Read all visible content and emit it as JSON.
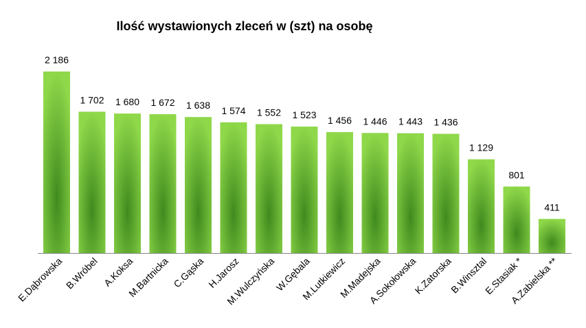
{
  "chart_data": {
    "type": "bar",
    "title": "Ilość  wystawionych zleceń w (szt) na osobę",
    "categories": [
      "E.Dąbrowska",
      "B.Wróbel",
      "A.Koksa",
      "M.Bartnicka",
      "C.Gąska",
      "H.Jarosz",
      "M.Wulczyńska",
      "W.Gębala",
      "M.Lutkiewicz",
      "M.Madejska",
      "A.Sokołowska",
      "K.Zatorska",
      "B.Winsztal",
      "E.Stasiak *",
      "A.Zabielska **"
    ],
    "values": [
      2186,
      1702,
      1680,
      1672,
      1638,
      1574,
      1552,
      1523,
      1456,
      1446,
      1443,
      1436,
      1129,
      801,
      411
    ],
    "value_labels": [
      "2 186",
      "1 702",
      "1 680",
      "1 672",
      "1 638",
      "1 574",
      "1 552",
      "1 523",
      "1 456",
      "1 446",
      "1 443",
      "1 436",
      "1 129",
      "801",
      "411"
    ],
    "xlabel": "",
    "ylabel": "",
    "ylim": [
      0,
      2186
    ],
    "grid": false,
    "legend": "none",
    "colors": {
      "bar_edge": "#8fd84a",
      "bar_center": "#3f8a1e",
      "axis": "#868686"
    }
  }
}
